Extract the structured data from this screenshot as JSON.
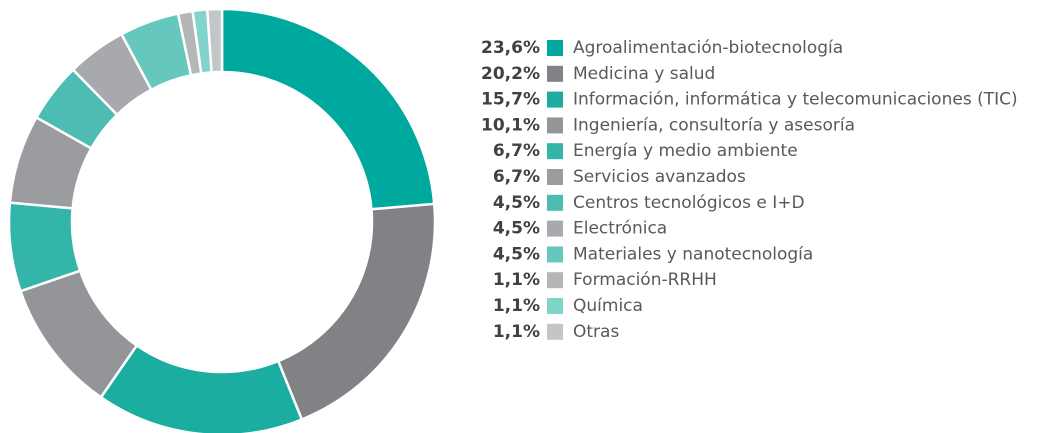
{
  "chart_data": {
    "type": "donut",
    "categories": [
      "Agroalimentación-biotecnología",
      "Medicina y salud",
      "Información, informática y telecomunicaciones (TIC)",
      "Ingeniería, consultoría y asesoría",
      "Energía y medio ambiente",
      "Servicios avanzados",
      "Centros tecnológicos e I+D",
      "Electrónica",
      "Materiales y nanotecnología",
      "Formación-RRHH",
      "Química",
      "Otras"
    ],
    "values": [
      23.6,
      20.2,
      15.7,
      10.1,
      6.7,
      6.7,
      4.5,
      4.5,
      4.5,
      1.1,
      1.1,
      1.1
    ],
    "value_labels": [
      "23,6%",
      "20,2%",
      "15,7%",
      "10,1%",
      "6,7%",
      "6,7%",
      "4,5%",
      "4,5%",
      "4,5%",
      "1,1%",
      "1,1%",
      "1,1%"
    ],
    "colors": [
      "#00a99d",
      "#808285",
      "#1aada0",
      "#939598",
      "#33b5aa",
      "#9a9c9f",
      "#4dbdb3",
      "#a7a9ac",
      "#66c7be",
      "#b5b6b8",
      "#80d4cc",
      "#c4c5c7"
    ],
    "legend": "right"
  }
}
